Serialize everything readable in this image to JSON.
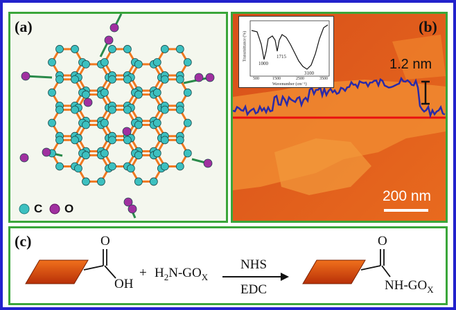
{
  "panels": {
    "a": {
      "label": "(a)",
      "legend": {
        "carbon_symbol": "C",
        "oxygen_symbol": "O",
        "carbon_color": "#3cc0c0",
        "oxygen_color": "#a030a0",
        "bond_color": "#f07820"
      }
    },
    "b": {
      "label": "(b)",
      "height_annotation": "1.2 nm",
      "scale_bar_label": "200 nm",
      "inset": {
        "y_axis_label": "Transmittance (%)",
        "x_axis_label": "Wavenumber (cm⁻¹)",
        "peak_labels": [
          "1000",
          "1715",
          "3100"
        ],
        "tick_labels": [
          "500",
          "1500",
          "2500",
          "3500"
        ]
      }
    },
    "c": {
      "label": "(c)",
      "reactant_groups": {
        "carbonyl_O": "O",
        "hydroxyl": "OH"
      },
      "plus": "+",
      "reagent": {
        "prefix": "H",
        "prefix_sub": "2",
        "main": "N-GO",
        "main_sub": "X"
      },
      "above_arrow": "NHS",
      "below_arrow": "EDC",
      "product_groups": {
        "carbonyl_O": "O",
        "amide_main": "NH-GO",
        "amide_sub": "X"
      }
    }
  }
}
